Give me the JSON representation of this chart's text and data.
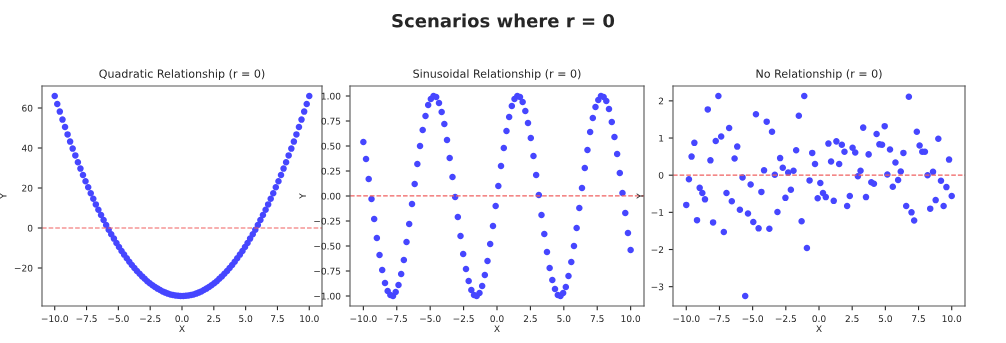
{
  "chart_data": [
    {
      "type": "other",
      "title": "Scenarios where r = 0"
    },
    {
      "type": "scatter",
      "title": "Quadratic Relationship (r = 0)",
      "xlabel": "X",
      "ylabel": "Y",
      "x": [
        -10,
        -9.8,
        -9.6,
        -9.39,
        -9.19,
        -8.99,
        -8.79,
        -8.59,
        -8.38,
        -8.18,
        -7.98,
        -7.78,
        -7.58,
        -7.37,
        -7.17,
        -6.97,
        -6.77,
        -6.57,
        -6.36,
        -6.16,
        -5.96,
        -5.76,
        -5.56,
        -5.35,
        -5.15,
        -4.95,
        -4.75,
        -4.55,
        -4.34,
        -4.14,
        -3.94,
        -3.74,
        -3.54,
        -3.33,
        -3.13,
        -2.93,
        -2.73,
        -2.53,
        -2.32,
        -2.12,
        -1.92,
        -1.72,
        -1.52,
        -1.31,
        -1.11,
        -0.91,
        -0.71,
        -0.51,
        -0.3,
        -0.1,
        0.1,
        0.3,
        0.51,
        0.71,
        0.91,
        1.11,
        1.31,
        1.52,
        1.72,
        1.92,
        2.12,
        2.32,
        2.53,
        2.73,
        2.93,
        3.13,
        3.33,
        3.54,
        3.74,
        3.94,
        4.14,
        4.34,
        4.55,
        4.75,
        4.95,
        5.15,
        5.35,
        5.56,
        5.76,
        5.96,
        6.16,
        6.36,
        6.57,
        6.77,
        6.97,
        7.17,
        7.37,
        7.58,
        7.78,
        7.98,
        8.18,
        8.38,
        8.59,
        8.79,
        8.99,
        9.19,
        9.39,
        9.6,
        9.8,
        10
      ],
      "series": [
        {
          "color": "#4646ff",
          "values": [
            66,
            62.0,
            58.2,
            54.2,
            50.5,
            46.8,
            43.2,
            39.7,
            36.3,
            32.9,
            29.7,
            26.5,
            23.4,
            20.4,
            17.4,
            14.6,
            11.8,
            9.1,
            6.5,
            4.0,
            1.5,
            -0.9,
            -3.1,
            -5.3,
            -7.5,
            -9.5,
            -11.5,
            -13.3,
            -15.1,
            -16.9,
            -18.5,
            -20.0,
            -21.5,
            -22.9,
            -24.2,
            -25.4,
            -26.6,
            -27.6,
            -28.6,
            -29.5,
            -30.3,
            -31.0,
            -31.7,
            -32.3,
            -32.8,
            -33.2,
            -33.5,
            -33.7,
            -33.9,
            -34.0,
            -34.0,
            -33.9,
            -33.7,
            -33.5,
            -33.2,
            -32.8,
            -32.3,
            -31.7,
            -31.0,
            -30.3,
            -29.5,
            -28.6,
            -27.6,
            -26.6,
            -25.4,
            -24.2,
            -22.9,
            -21.5,
            -20.0,
            -18.5,
            -16.9,
            -15.1,
            -13.3,
            -11.5,
            -9.5,
            -7.5,
            -5.3,
            -3.1,
            -0.9,
            1.5,
            4.0,
            6.5,
            9.1,
            11.8,
            14.6,
            17.4,
            20.4,
            23.4,
            26.5,
            29.7,
            32.9,
            36.3,
            39.7,
            43.2,
            46.8,
            50.5,
            54.2,
            58.2,
            62.0,
            66
          ]
        }
      ],
      "xlim": [
        -11,
        11
      ],
      "xticks": [
        {
          "value": -10,
          "label": "−10.0"
        },
        {
          "value": -7.5,
          "label": "−7.5"
        },
        {
          "value": -5,
          "label": "−5.0"
        },
        {
          "value": -2.5,
          "label": "−2.5"
        },
        {
          "value": 0,
          "label": "0.0"
        },
        {
          "value": 2.5,
          "label": "2.5"
        },
        {
          "value": 5,
          "label": "5.0"
        },
        {
          "value": 7.5,
          "label": "7.5"
        },
        {
          "value": 10,
          "label": "10.0"
        }
      ],
      "ylim": [
        -39,
        71
      ],
      "yticks": [
        {
          "value": -20,
          "label": "−20"
        },
        0,
        20,
        40,
        60
      ],
      "ref_lines": [
        {
          "axis": "y",
          "value": 0,
          "color": "#f06060",
          "line_style": "dashed"
        }
      ],
      "marker": "circle",
      "grid": false,
      "legend": false
    },
    {
      "type": "scatter",
      "title": "Sinusoidal Relationship (r = 0)",
      "xlabel": "X",
      "ylabel": "Y",
      "x": [
        -10,
        -9.8,
        -9.6,
        -9.39,
        -9.19,
        -8.99,
        -8.79,
        -8.59,
        -8.38,
        -8.18,
        -7.98,
        -7.78,
        -7.58,
        -7.37,
        -7.17,
        -6.97,
        -6.77,
        -6.57,
        -6.36,
        -6.16,
        -5.96,
        -5.76,
        -5.56,
        -5.35,
        -5.15,
        -4.95,
        -4.75,
        -4.55,
        -4.34,
        -4.14,
        -3.94,
        -3.74,
        -3.54,
        -3.33,
        -3.13,
        -2.93,
        -2.73,
        -2.53,
        -2.32,
        -2.12,
        -1.92,
        -1.72,
        -1.52,
        -1.31,
        -1.11,
        -0.91,
        -0.71,
        -0.51,
        -0.3,
        -0.1,
        0.1,
        0.3,
        0.51,
        0.71,
        0.91,
        1.11,
        1.31,
        1.52,
        1.72,
        1.92,
        2.12,
        2.32,
        2.53,
        2.73,
        2.93,
        3.13,
        3.33,
        3.54,
        3.74,
        3.94,
        4.14,
        4.34,
        4.55,
        4.75,
        4.95,
        5.15,
        5.35,
        5.56,
        5.76,
        5.96,
        6.16,
        6.36,
        6.57,
        6.77,
        6.97,
        7.17,
        7.37,
        7.58,
        7.78,
        7.98,
        8.18,
        8.38,
        8.59,
        8.79,
        8.99,
        9.19,
        9.39,
        9.6,
        9.8,
        10
      ],
      "series": [
        {
          "color": "#4646ff",
          "values": [
            0.54,
            0.37,
            0.17,
            -0.03,
            -0.23,
            -0.42,
            -0.59,
            -0.74,
            -0.87,
            -0.95,
            -0.99,
            -1.0,
            -0.96,
            -0.89,
            -0.78,
            -0.64,
            -0.46,
            -0.28,
            -0.08,
            0.12,
            0.32,
            0.5,
            0.66,
            0.8,
            0.91,
            0.97,
            1.0,
            0.99,
            0.93,
            0.84,
            0.72,
            0.56,
            0.38,
            0.19,
            -0.01,
            -0.21,
            -0.4,
            -0.58,
            -0.73,
            -0.85,
            -0.94,
            -0.99,
            -1.0,
            -0.97,
            -0.9,
            -0.79,
            -0.65,
            -0.48,
            -0.3,
            -0.1,
            0.1,
            0.3,
            0.48,
            0.65,
            0.79,
            0.9,
            0.97,
            1.0,
            0.99,
            0.94,
            0.85,
            0.73,
            0.58,
            0.4,
            0.21,
            0.01,
            -0.19,
            -0.38,
            -0.56,
            -0.72,
            -0.84,
            -0.93,
            -0.99,
            -1.0,
            -0.97,
            -0.91,
            -0.8,
            -0.66,
            -0.5,
            -0.32,
            -0.12,
            0.08,
            0.28,
            0.46,
            0.64,
            0.78,
            0.89,
            0.96,
            1.0,
            0.99,
            0.95,
            0.87,
            0.74,
            0.59,
            0.42,
            0.23,
            0.03,
            -0.17,
            -0.37,
            -0.54
          ]
        }
      ],
      "xlim": [
        -11,
        11
      ],
      "xticks": [
        {
          "value": -10,
          "label": "−10.0"
        },
        {
          "value": -7.5,
          "label": "−7.5"
        },
        {
          "value": -5,
          "label": "−5.0"
        },
        {
          "value": -2.5,
          "label": "−2.5"
        },
        {
          "value": 0,
          "label": "0.0"
        },
        {
          "value": 2.5,
          "label": "2.5"
        },
        {
          "value": 5,
          "label": "5.0"
        },
        {
          "value": 7.5,
          "label": "7.5"
        },
        {
          "value": 10,
          "label": "10.0"
        }
      ],
      "ylim": [
        -1.1,
        1.1
      ],
      "yticks": [
        {
          "value": -1,
          "label": "−1.00"
        },
        {
          "value": -0.75,
          "label": "−0.75"
        },
        {
          "value": -0.5,
          "label": "−0.50"
        },
        {
          "value": -0.25,
          "label": "−0.25"
        },
        {
          "value": 0,
          "label": "0.00"
        },
        {
          "value": 0.25,
          "label": "0.25"
        },
        {
          "value": 0.5,
          "label": "0.50"
        },
        {
          "value": 0.75,
          "label": "0.75"
        },
        {
          "value": 1,
          "label": "1.00"
        }
      ],
      "ref_lines": [
        {
          "axis": "y",
          "value": 0,
          "color": "#f06060",
          "line_style": "dashed"
        }
      ],
      "marker": "circle",
      "grid": false,
      "legend": false
    },
    {
      "type": "scatter",
      "title": "No Relationship (r = 0)",
      "xlabel": "X",
      "ylabel": "Y",
      "x": [
        -10,
        -9.8,
        -9.6,
        -9.39,
        -9.19,
        -8.99,
        -8.79,
        -8.59,
        -8.38,
        -8.18,
        -7.98,
        -7.78,
        -7.58,
        -7.37,
        -7.17,
        -6.97,
        -6.77,
        -6.57,
        -6.36,
        -6.16,
        -5.96,
        -5.76,
        -5.56,
        -5.35,
        -5.15,
        -4.95,
        -4.75,
        -4.55,
        -4.34,
        -4.14,
        -3.94,
        -3.74,
        -3.54,
        -3.33,
        -3.13,
        -2.93,
        -2.73,
        -2.53,
        -2.32,
        -2.12,
        -1.92,
        -1.72,
        -1.52,
        -1.31,
        -1.11,
        -0.91,
        -0.71,
        -0.51,
        -0.3,
        -0.1,
        0.1,
        0.3,
        0.51,
        0.71,
        0.91,
        1.11,
        1.31,
        1.52,
        1.72,
        1.92,
        2.12,
        2.32,
        2.53,
        2.73,
        2.93,
        3.13,
        3.33,
        3.54,
        3.74,
        3.94,
        4.14,
        4.34,
        4.55,
        4.75,
        4.95,
        5.15,
        5.35,
        5.56,
        5.76,
        5.96,
        6.16,
        6.36,
        6.57,
        6.77,
        6.97,
        7.17,
        7.37,
        7.58,
        7.78,
        7.98,
        8.18,
        8.38,
        8.59,
        8.79,
        8.99,
        9.19,
        9.39,
        9.6,
        9.8,
        10
      ],
      "series": [
        {
          "color": "#4646ff",
          "values": [
            -0.8,
            -0.11,
            0.5,
            0.87,
            -1.21,
            -0.34,
            -0.48,
            -0.65,
            1.77,
            0.4,
            -1.27,
            0.92,
            2.13,
            1.04,
            -1.53,
            -0.48,
            1.27,
            -0.7,
            0.45,
            0.77,
            -0.93,
            -0.06,
            -3.25,
            -1.03,
            -0.25,
            -1.26,
            1.64,
            -1.43,
            -0.45,
            0.13,
            1.44,
            -1.44,
            1.17,
            0.01,
            -0.99,
            0.46,
            0.2,
            -0.61,
            0.07,
            -0.39,
            0.12,
            0.67,
            1.6,
            -1.24,
            2.13,
            -1.96,
            -0.14,
            0.6,
            0.3,
            -0.62,
            -0.21,
            -0.48,
            -0.59,
            0.85,
            0.37,
            -0.69,
            0.91,
            0.3,
            0.82,
            0.63,
            -0.83,
            -0.56,
            0.74,
            0.61,
            -0.03,
            0.12,
            1.28,
            -0.59,
            0.56,
            -0.19,
            -0.23,
            1.11,
            0.83,
            0.82,
            1.32,
            0.02,
            0.69,
            -0.31,
            0.34,
            -0.13,
            0.1,
            0.6,
            -0.83,
            2.11,
            -1.0,
            -1.22,
            1.17,
            0.8,
            0.63,
            0.63,
            0.0,
            -0.9,
            0.09,
            -0.67,
            0.98,
            -0.15,
            -0.83,
            -0.32,
            0.42,
            -0.56
          ]
        }
      ],
      "xlim": [
        -11,
        11
      ],
      "xticks": [
        {
          "value": -10,
          "label": "−10.0"
        },
        {
          "value": -7.5,
          "label": "−7.5"
        },
        {
          "value": -5,
          "label": "−5.0"
        },
        {
          "value": -2.5,
          "label": "−2.5"
        },
        {
          "value": 0,
          "label": "0.0"
        },
        {
          "value": 2.5,
          "label": "2.5"
        },
        {
          "value": 5,
          "label": "5.0"
        },
        {
          "value": 7.5,
          "label": "7.5"
        },
        {
          "value": 10,
          "label": "10.0"
        }
      ],
      "ylim": [
        -3.52,
        2.4
      ],
      "yticks": [
        {
          "value": -3,
          "label": "−3"
        },
        {
          "value": -2,
          "label": "−2"
        },
        {
          "value": -1,
          "label": "−1"
        },
        0,
        1,
        2
      ],
      "ref_lines": [
        {
          "axis": "y",
          "value": 0,
          "color": "#f06060",
          "line_style": "dashed"
        }
      ],
      "marker": "circle",
      "grid": false,
      "legend": false
    }
  ]
}
